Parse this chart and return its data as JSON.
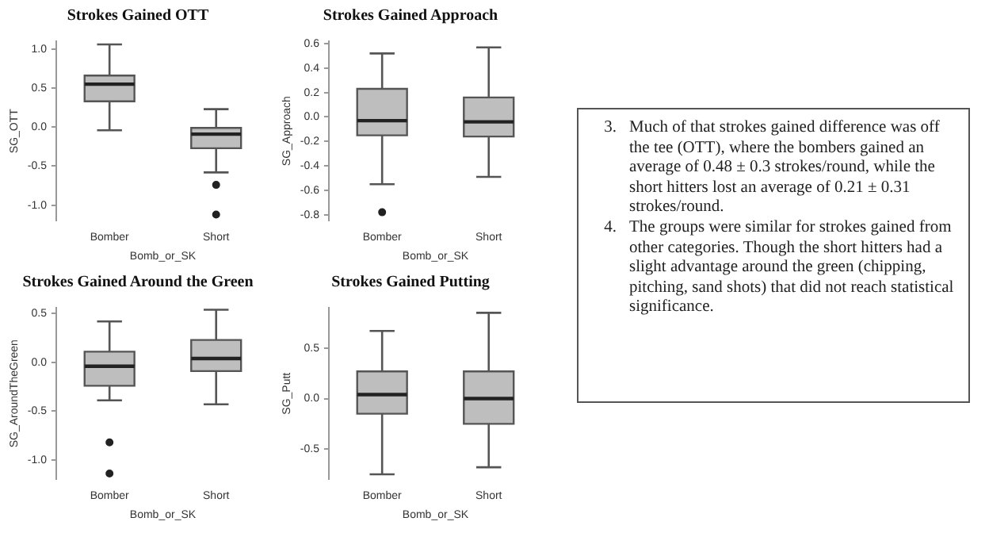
{
  "chart_data": [
    {
      "type": "box",
      "title": "Strokes Gained OTT",
      "xlabel": "Bomb_or_SK",
      "ylabel": "SG_OTT",
      "categories": [
        "Bomber",
        "Short"
      ],
      "color": "#bebebe",
      "grid": false,
      "legend": false,
      "boxes": [
        {
          "low": -0.04,
          "q1": 0.33,
          "median": 0.55,
          "q3": 0.66,
          "high": 1.06
        },
        {
          "low": -0.58,
          "q1": -0.27,
          "median": -0.09,
          "q3": -0.01,
          "high": 0.23,
          "outliers": [
            -0.74,
            -1.12
          ]
        }
      ],
      "ylim": [
        -1.2,
        1.1
      ],
      "yticks": [
        {
          "value": -1,
          "label": "-1.0"
        },
        {
          "value": -0.5,
          "label": "-0.5"
        },
        {
          "value": 0,
          "label": "0.0"
        },
        {
          "value": 0.5,
          "label": "0.5"
        },
        {
          "value": 1,
          "label": "1.0"
        }
      ]
    },
    {
      "type": "box",
      "title": "Strokes Gained Approach",
      "xlabel": "Bomb_or_SK",
      "ylabel": "SG_Approach",
      "categories": [
        "Bomber",
        "Short"
      ],
      "color": "#bebebe",
      "grid": false,
      "legend": false,
      "boxes": [
        {
          "low": -0.55,
          "q1": -0.15,
          "median": -0.03,
          "q3": 0.23,
          "high": 0.52,
          "outliers": [
            -0.78
          ]
        },
        {
          "low": -0.49,
          "q1": -0.16,
          "median": -0.04,
          "q3": 0.16,
          "high": 0.57
        }
      ],
      "ylim": [
        -0.85,
        0.62
      ],
      "yticks": [
        {
          "value": -0.8,
          "label": "-0.8"
        },
        {
          "value": -0.6,
          "label": "-0.6"
        },
        {
          "value": -0.4,
          "label": "-0.4"
        },
        {
          "value": -0.2,
          "label": "-0.2"
        },
        {
          "value": 0,
          "label": "0.0"
        },
        {
          "value": 0.2,
          "label": "0.2"
        },
        {
          "value": 0.4,
          "label": "0.4"
        },
        {
          "value": 0.6,
          "label": "0.6"
        }
      ]
    },
    {
      "type": "box",
      "title": "Strokes Gained Around the Green",
      "xlabel": "Bomb_or_SK",
      "ylabel": "SG_AroundTheGreen",
      "categories": [
        "Bomber",
        "Short"
      ],
      "color": "#bebebe",
      "grid": false,
      "legend": false,
      "boxes": [
        {
          "low": -0.39,
          "q1": -0.24,
          "median": -0.04,
          "q3": 0.11,
          "high": 0.42,
          "outliers": [
            -0.82,
            -1.14
          ]
        },
        {
          "low": -0.43,
          "q1": -0.09,
          "median": 0.04,
          "q3": 0.23,
          "high": 0.54
        }
      ],
      "ylim": [
        -1.2,
        0.56
      ],
      "yticks": [
        {
          "value": -1,
          "label": "-1.0"
        },
        {
          "value": -0.5,
          "label": "-0.5"
        },
        {
          "value": 0,
          "label": "0.0"
        },
        {
          "value": 0.5,
          "label": "0.5"
        }
      ]
    },
    {
      "type": "box",
      "title": "Strokes Gained Putting",
      "xlabel": "Bomb_or_SK",
      "ylabel": "SG_Putt",
      "categories": [
        "Bomber",
        "Short"
      ],
      "color": "#bebebe",
      "grid": false,
      "legend": false,
      "boxes": [
        {
          "low": -0.75,
          "q1": -0.15,
          "median": 0.04,
          "q3": 0.27,
          "high": 0.67
        },
        {
          "low": -0.68,
          "q1": -0.25,
          "median": 0,
          "q3": 0.27,
          "high": 0.85
        }
      ],
      "ylim": [
        -0.8,
        0.9
      ],
      "yticks": [
        {
          "value": -0.5,
          "label": "-0.5"
        },
        {
          "value": 0,
          "label": "0.0"
        },
        {
          "value": 0.5,
          "label": "0.5"
        }
      ]
    },
    {
      "type": "other",
      "annotations": [
        "3.\tMuch of that strokes gained difference was off the tee (OTT), where the bombers gained an average of 0.48 ± 0.3 strokes/round, while the short hitters lost an average of 0.21 ± 0.31 strokes/round.",
        "4.\tThe groups were similar for strokes gained from other categories. Though the short hitters had a slight advantage around the green (chipping, pitching, sand shots) that did not reach statistical significance."
      ]
    }
  ]
}
